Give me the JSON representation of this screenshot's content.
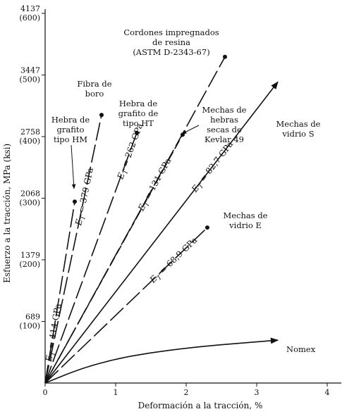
{
  "chart_data": {
    "type": "line",
    "title": "",
    "xlabel": "Deformación a la tracción, %",
    "ylabel": "Esfuerzo a la tracción, MPa (ksi)",
    "xlim": [
      0,
      4
    ],
    "ylim": [
      0,
      4137
    ],
    "x_ticks": [
      {
        "value": 0,
        "label": "0"
      },
      {
        "value": 1,
        "label": "1"
      },
      {
        "value": 2,
        "label": "2"
      },
      {
        "value": 3,
        "label": "3"
      },
      {
        "value": 4,
        "label": "4"
      }
    ],
    "y_ticks": [
      {
        "value": 689,
        "mpa": "689",
        "ksi": "(100)"
      },
      {
        "value": 1379,
        "mpa": "1379",
        "ksi": "(200)"
      },
      {
        "value": 2068,
        "mpa": "2068",
        "ksi": "(300)"
      },
      {
        "value": 2758,
        "mpa": "2758",
        "ksi": "(400)"
      },
      {
        "value": 3447,
        "mpa": "3447",
        "ksi": "(500)"
      },
      {
        "value": 4137,
        "mpa": "4137",
        "ksi": "(600)"
      }
    ],
    "grid": false,
    "series": [
      {
        "name": "Hebra de grafito tipo HM",
        "label_lines": [
          "Hebra de",
          "grafito",
          "tipo HM"
        ],
        "modulus": "414 GPa",
        "points": [
          [
            0,
            0
          ],
          [
            0.42,
            2030
          ]
        ],
        "end_marker": "dot",
        "style": "long-dash"
      },
      {
        "name": "Fibra de boro",
        "label_lines": [
          "Fibra de",
          "boro"
        ],
        "modulus": "379 GPa",
        "points": [
          [
            0,
            0
          ],
          [
            0.8,
            3000
          ]
        ],
        "end_marker": "dot",
        "style": "long-dash"
      },
      {
        "name": "Hebra de grafito de tipo HT",
        "label_lines": [
          "Hebra de",
          "grafito de",
          "tipo HT"
        ],
        "modulus": "262 GPa",
        "points": [
          [
            0,
            0
          ],
          [
            1.3,
            2800
          ]
        ],
        "end_marker": "dot",
        "style": "long-dash"
      },
      {
        "name": "Cordones impregnados de resina (ASTM D-2343-67)",
        "label_lines": [
          "Cordones impregnados",
          "de resina",
          "(ASTM D-2343-67)"
        ],
        "modulus": "131 GPa",
        "points": [
          [
            0,
            0
          ],
          [
            2.55,
            3650
          ]
        ],
        "end_marker": "dot",
        "style": "long-dash"
      },
      {
        "name": "Mechas de hebras secas de Kevlar 49",
        "label_lines": [
          "Mechas de",
          "hebras",
          "secas de",
          "Kevlar 49"
        ],
        "modulus": "",
        "points": [
          [
            0,
            0
          ],
          [
            1.95,
            2780
          ]
        ],
        "end_marker": "dot",
        "style": "dashed"
      },
      {
        "name": "Mechas de vidrio S",
        "label_lines": [
          "Mechas de",
          "vidrio S"
        ],
        "modulus": "82,7 GPa",
        "points": [
          [
            0,
            0
          ],
          [
            3.3,
            3370
          ]
        ],
        "end_marker": "arrow",
        "style": "solid"
      },
      {
        "name": "Mechas de vidrio E",
        "label_lines": [
          "Mechas de",
          "vidrio E"
        ],
        "modulus": "68,9 GPa",
        "points": [
          [
            0,
            0
          ],
          [
            2.3,
            1740
          ]
        ],
        "end_marker": "dot",
        "style": "long-dash"
      },
      {
        "name": "Nomex",
        "label_lines": [
          "Nomex"
        ],
        "modulus": "",
        "points": [
          [
            0,
            0
          ],
          [
            0.5,
            160
          ],
          [
            1.0,
            270
          ],
          [
            1.5,
            340
          ],
          [
            2.0,
            390
          ],
          [
            2.5,
            430
          ],
          [
            3.0,
            460
          ],
          [
            3.3,
            480
          ]
        ],
        "end_marker": "arrow",
        "style": "solid-curve"
      }
    ],
    "modulus_prefix": "E",
    "modulus_subscript": "T"
  }
}
